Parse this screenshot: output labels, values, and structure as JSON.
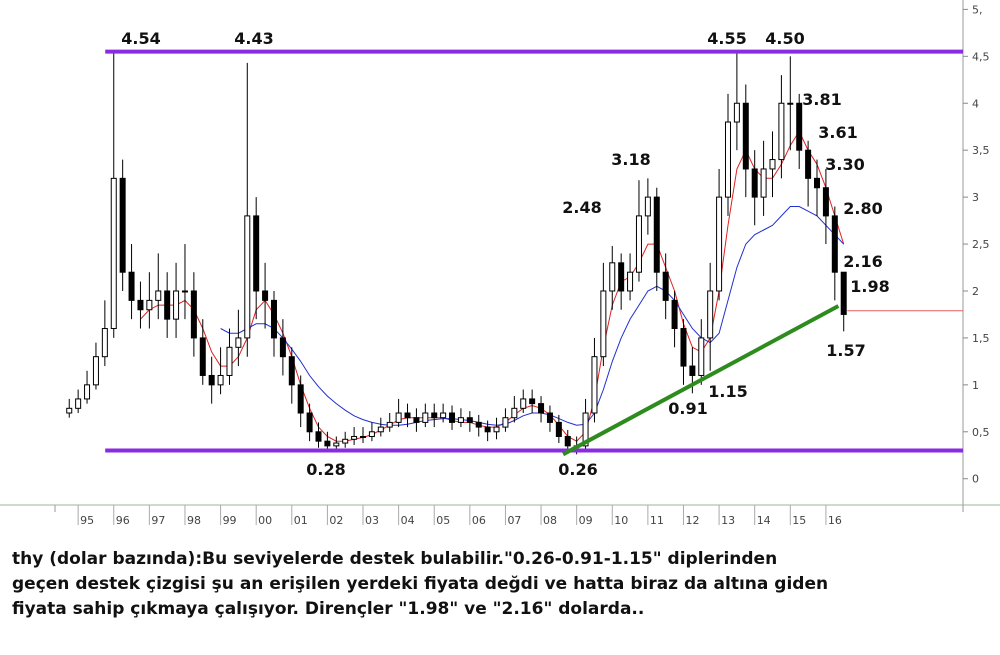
{
  "chart_data": {
    "type": "candlestick",
    "x": [
      1994.75,
      1995,
      1995.25,
      1995.5,
      1995.75,
      1996,
      1996.25,
      1996.5,
      1996.75,
      1997,
      1997.25,
      1997.5,
      1997.75,
      1998,
      1998.25,
      1998.5,
      1998.75,
      1999,
      1999.25,
      1999.5,
      1999.75,
      2000,
      2000.25,
      2000.5,
      2000.75,
      2001,
      2001.25,
      2001.5,
      2001.75,
      2002,
      2002.25,
      2002.5,
      2002.75,
      2003,
      2003.25,
      2003.5,
      2003.75,
      2004,
      2004.25,
      2004.5,
      2004.75,
      2005,
      2005.25,
      2005.5,
      2005.75,
      2006,
      2006.25,
      2006.5,
      2006.75,
      2007,
      2007.25,
      2007.5,
      2007.75,
      2008,
      2008.25,
      2008.5,
      2008.75,
      2009,
      2009.25,
      2009.5,
      2009.75,
      2010,
      2010.25,
      2010.5,
      2010.75,
      2011,
      2011.25,
      2011.5,
      2011.75,
      2012,
      2012.25,
      2012.5,
      2012.75,
      2013,
      2013.25,
      2013.5,
      2013.75,
      2014,
      2014.25,
      2014.5,
      2014.75,
      2015,
      2015.25,
      2015.5,
      2015.75,
      2016,
      2016.25,
      2016.5
    ],
    "open": [
      0.7,
      0.75,
      0.85,
      1.0,
      1.3,
      1.6,
      3.2,
      2.2,
      1.9,
      1.8,
      1.9,
      2.0,
      1.7,
      2.0,
      2.0,
      1.5,
      1.1,
      1.0,
      1.1,
      1.4,
      1.5,
      2.8,
      2.0,
      1.9,
      1.5,
      1.3,
      1.0,
      0.7,
      0.5,
      0.4,
      0.35,
      0.38,
      0.42,
      0.45,
      0.45,
      0.5,
      0.55,
      0.6,
      0.7,
      0.65,
      0.6,
      0.7,
      0.65,
      0.7,
      0.6,
      0.65,
      0.6,
      0.55,
      0.5,
      0.55,
      0.65,
      0.75,
      0.85,
      0.8,
      0.7,
      0.6,
      0.45,
      0.35,
      0.35,
      0.7,
      1.3,
      2.0,
      2.3,
      2.0,
      2.2,
      2.8,
      3.0,
      2.2,
      1.9,
      1.6,
      1.2,
      1.1,
      1.5,
      2.0,
      3.0,
      3.8,
      4.0,
      3.3,
      3.0,
      3.3,
      3.4,
      4.0,
      4.0,
      3.5,
      3.2,
      3.1,
      2.8,
      2.2
    ],
    "high": [
      0.85,
      0.95,
      1.15,
      1.45,
      1.9,
      4.54,
      3.4,
      2.5,
      2.1,
      2.2,
      2.4,
      2.2,
      2.3,
      2.5,
      2.2,
      1.7,
      1.3,
      1.4,
      1.6,
      1.8,
      4.43,
      3.0,
      2.3,
      2.0,
      1.7,
      1.4,
      1.1,
      0.8,
      0.6,
      0.5,
      0.45,
      0.5,
      0.55,
      0.55,
      0.6,
      0.65,
      0.7,
      0.85,
      0.8,
      0.75,
      0.8,
      0.8,
      0.8,
      0.78,
      0.75,
      0.72,
      0.68,
      0.62,
      0.65,
      0.75,
      0.88,
      0.95,
      0.95,
      0.88,
      0.78,
      0.68,
      0.52,
      0.45,
      0.85,
      1.5,
      2.3,
      2.48,
      2.4,
      2.4,
      3.18,
      3.2,
      3.1,
      2.4,
      2.0,
      1.7,
      1.4,
      1.7,
      2.3,
      3.3,
      4.1,
      4.55,
      4.2,
      3.5,
      3.6,
      3.7,
      4.3,
      4.5,
      4.1,
      3.6,
      3.4,
      3.3,
      2.9,
      2.16
    ],
    "low": [
      0.65,
      0.7,
      0.8,
      0.95,
      1.2,
      1.5,
      2.0,
      1.7,
      1.6,
      1.6,
      1.7,
      1.5,
      1.5,
      1.7,
      1.3,
      1.0,
      0.8,
      0.9,
      1.0,
      1.2,
      1.3,
      1.7,
      1.6,
      1.3,
      1.1,
      0.8,
      0.55,
      0.4,
      0.33,
      0.28,
      0.3,
      0.33,
      0.36,
      0.38,
      0.4,
      0.45,
      0.5,
      0.55,
      0.55,
      0.5,
      0.55,
      0.55,
      0.6,
      0.52,
      0.55,
      0.5,
      0.45,
      0.4,
      0.42,
      0.5,
      0.6,
      0.7,
      0.7,
      0.6,
      0.5,
      0.38,
      0.3,
      0.26,
      0.3,
      0.6,
      1.2,
      1.8,
      1.8,
      1.9,
      2.1,
      2.6,
      2.0,
      1.7,
      1.4,
      1.0,
      0.91,
      1.0,
      1.15,
      1.9,
      2.8,
      3.5,
      3.0,
      2.7,
      2.8,
      3.0,
      3.2,
      3.5,
      3.3,
      2.9,
      2.8,
      2.5,
      1.9,
      1.57
    ],
    "close": [
      0.75,
      0.85,
      1.0,
      1.3,
      1.6,
      3.2,
      2.2,
      1.9,
      1.8,
      1.9,
      2.0,
      1.7,
      2.0,
      2.0,
      1.5,
      1.1,
      1.0,
      1.1,
      1.4,
      1.5,
      2.8,
      2.0,
      1.9,
      1.5,
      1.3,
      1.0,
      0.7,
      0.5,
      0.4,
      0.35,
      0.38,
      0.42,
      0.45,
      0.45,
      0.5,
      0.55,
      0.6,
      0.7,
      0.65,
      0.6,
      0.7,
      0.65,
      0.7,
      0.6,
      0.65,
      0.6,
      0.55,
      0.5,
      0.55,
      0.65,
      0.75,
      0.85,
      0.8,
      0.7,
      0.6,
      0.45,
      0.35,
      0.35,
      0.7,
      1.3,
      2.0,
      2.3,
      2.0,
      2.2,
      2.8,
      3.0,
      2.2,
      1.9,
      1.6,
      1.2,
      1.1,
      1.5,
      2.0,
      3.0,
      3.8,
      4.0,
      3.3,
      3.0,
      3.3,
      3.4,
      4.0,
      4.0,
      3.5,
      3.2,
      3.1,
      2.8,
      2.2,
      1.75
    ],
    "color": "#000000",
    "overlays": [
      {
        "color": "#e02020",
        "values": [
          null,
          null,
          null,
          null,
          null,
          null,
          null,
          null,
          1.7,
          1.8,
          1.85,
          1.85,
          1.85,
          1.9,
          1.8,
          1.6,
          1.35,
          1.2,
          1.2,
          1.3,
          1.5,
          1.8,
          1.9,
          1.75,
          1.55,
          1.3,
          1.0,
          0.75,
          0.55,
          0.45,
          0.4,
          0.4,
          0.42,
          0.44,
          0.47,
          0.52,
          0.57,
          0.63,
          0.65,
          0.65,
          0.65,
          0.65,
          0.65,
          0.62,
          0.6,
          0.6,
          0.57,
          0.55,
          0.55,
          0.6,
          0.68,
          0.75,
          0.78,
          0.75,
          0.68,
          0.57,
          0.45,
          0.4,
          0.5,
          0.85,
          1.4,
          1.85,
          2.1,
          2.15,
          2.3,
          2.5,
          2.5,
          2.25,
          2.0,
          1.65,
          1.4,
          1.35,
          1.5,
          2.0,
          2.7,
          3.3,
          3.5,
          3.3,
          3.2,
          3.2,
          3.35,
          3.55,
          3.7,
          3.5,
          3.35,
          3.1,
          2.8,
          2.5
        ]
      },
      {
        "color": "#2030d0",
        "values": [
          null,
          null,
          null,
          null,
          null,
          null,
          null,
          null,
          null,
          null,
          null,
          null,
          null,
          null,
          null,
          null,
          null,
          1.6,
          1.55,
          1.55,
          1.6,
          1.65,
          1.65,
          1.6,
          1.5,
          1.38,
          1.25,
          1.1,
          0.98,
          0.88,
          0.8,
          0.73,
          0.67,
          0.63,
          0.6,
          0.58,
          0.57,
          0.57,
          0.58,
          0.6,
          0.62,
          0.63,
          0.64,
          0.64,
          0.63,
          0.62,
          0.6,
          0.58,
          0.57,
          0.58,
          0.62,
          0.67,
          0.7,
          0.7,
          0.68,
          0.64,
          0.6,
          0.57,
          0.58,
          0.7,
          0.95,
          1.25,
          1.5,
          1.7,
          1.85,
          2.0,
          2.05,
          2.0,
          1.9,
          1.75,
          1.6,
          1.5,
          1.45,
          1.55,
          1.9,
          2.25,
          2.5,
          2.6,
          2.65,
          2.7,
          2.8,
          2.9,
          2.9,
          2.85,
          2.8,
          2.7,
          2.6,
          2.5
        ]
      }
    ],
    "levels": [
      {
        "color": "#8a2be2",
        "x": [
          1995.76,
          2019.85
        ],
        "value": 4.55
      },
      {
        "color": "#8a2be2",
        "x": [
          1995.76,
          2019.85
        ],
        "value": 0.3
      }
    ],
    "support_line": {
      "color": "#2e8b1e",
      "x": [
        2008.62,
        2016.35
      ],
      "values": [
        0.26,
        1.84
      ]
    },
    "last_price": {
      "color": "#e06060",
      "x": [
        2016.6,
        2019.85
      ],
      "value": 1.79
    },
    "annotations": [
      "4.54",
      "4.43",
      "4.55",
      "4.50",
      "3.81",
      "3.61",
      "3.30",
      "2.80",
      "2.16",
      "1.98",
      "1.57",
      "1.15",
      "0.91",
      "3.18",
      "2.48",
      "0.28",
      "0.26"
    ],
    "xlim": [
      1994.35,
      2019.85
    ],
    "ylim": [
      -0.28,
      5.1
    ],
    "xticks": [
      {
        "value": 1995,
        "label": "95"
      },
      {
        "value": 1996,
        "label": "96"
      },
      {
        "value": 1997,
        "label": "97"
      },
      {
        "value": 1998,
        "label": "98"
      },
      {
        "value": 1999,
        "label": "99"
      },
      {
        "value": 2000,
        "label": "00"
      },
      {
        "value": 2001,
        "label": "01"
      },
      {
        "value": 2002,
        "label": "02"
      },
      {
        "value": 2003,
        "label": "03"
      },
      {
        "value": 2004,
        "label": "04"
      },
      {
        "value": 2005,
        "label": "05"
      },
      {
        "value": 2006,
        "label": "06"
      },
      {
        "value": 2007,
        "label": "07"
      },
      {
        "value": 2008,
        "label": "08"
      },
      {
        "value": 2009,
        "label": "09"
      },
      {
        "value": 2010,
        "label": "10"
      },
      {
        "value": 2011,
        "label": "11"
      },
      {
        "value": 2012,
        "label": "12"
      },
      {
        "value": 2013,
        "label": "13"
      },
      {
        "value": 2014,
        "label": "14"
      },
      {
        "value": 2015,
        "label": "15"
      },
      {
        "value": 2016,
        "label": "16"
      }
    ],
    "yticks": [
      0,
      {
        "value": 0.5,
        "label": "0,5"
      },
      1,
      {
        "value": 1.5,
        "label": "1,5"
      },
      2,
      {
        "value": 2.5,
        "label": "2,5"
      },
      3,
      {
        "value": 3.5,
        "label": "3,5"
      },
      4,
      {
        "value": 4.5,
        "label": "4,5"
      },
      {
        "value": 5,
        "label": "5,"
      }
    ]
  },
  "caption_lines": [
    "thy (dolar bazında):Bu seviyelerde destek bulabilir.\"0.26-0.91-1.15\" diplerinden",
    "geçen destek çizgisi şu an erişilen yerdeki fiyata değdi ve hatta biraz da altına giden",
    "fiyata sahip çıkmaya çalışıyor. Dirençler \"1.98\" ve \"2.16\" dolarda.."
  ]
}
